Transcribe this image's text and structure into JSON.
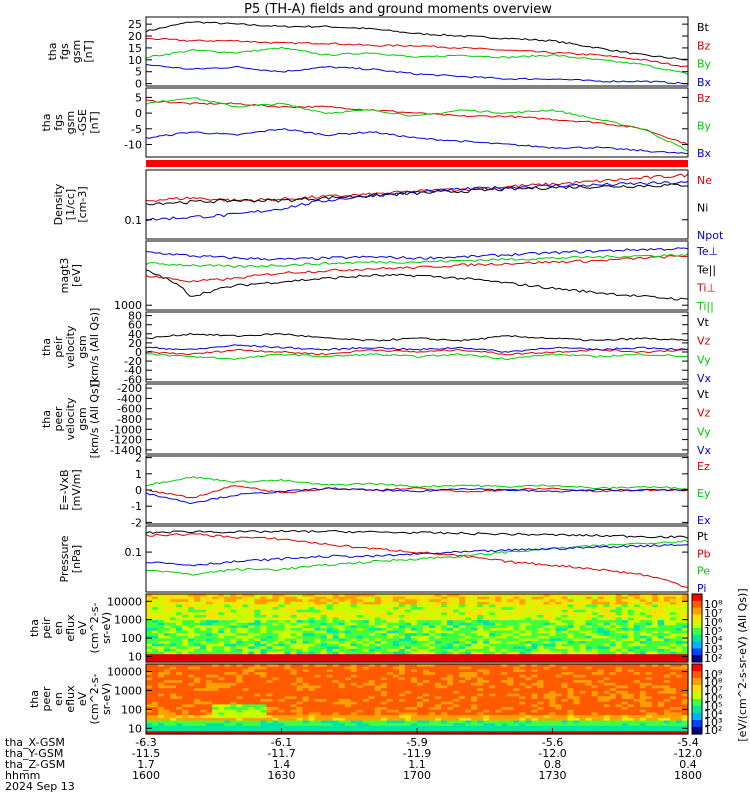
{
  "title": "P5 (TH-A) fields and ground moments overview",
  "chart_data": [
    {
      "type": "line",
      "panel": "fgs_gsm",
      "ylabel": [
        "tha",
        "fgs",
        "gsm",
        "[nT]"
      ],
      "yticks": [
        25,
        20,
        15,
        10,
        5,
        0
      ],
      "ylim": [
        -1,
        28
      ],
      "series": [
        {
          "name": "Bt",
          "color": "#000000",
          "values": [
            22,
            26,
            25,
            24,
            24,
            23,
            21,
            20,
            19,
            18,
            15,
            12,
            10
          ]
        },
        {
          "name": "Bz",
          "color": "#dd0000",
          "values": [
            19,
            18,
            18,
            17,
            17,
            16,
            16,
            15,
            14,
            13,
            12,
            10,
            7
          ]
        },
        {
          "name": "By",
          "color": "#00cc00",
          "values": [
            11,
            14,
            13,
            15,
            12,
            13,
            11,
            12,
            11,
            12,
            10,
            8,
            4
          ]
        },
        {
          "name": "Bx",
          "color": "#0000dd",
          "values": [
            8,
            6,
            7,
            5,
            7,
            6,
            4,
            3,
            2,
            2,
            1,
            1,
            0
          ]
        }
      ]
    },
    {
      "type": "line",
      "panel": "fgs_gsm_zoom",
      "ylabel": [
        "tha",
        "fgs",
        "gsm",
        "-GSE",
        "[nT]"
      ],
      "yticks": [
        5,
        0,
        -5,
        -10
      ],
      "ylim": [
        -14,
        8
      ],
      "series": [
        {
          "name": "Bz",
          "color": "#dd0000",
          "values": [
            4,
            3,
            3,
            2,
            2,
            1,
            0,
            -1,
            -1,
            -2,
            -3,
            -5,
            -10
          ]
        },
        {
          "name": "By",
          "color": "#00cc00",
          "values": [
            3,
            5,
            2,
            3,
            0,
            1,
            -1,
            1,
            0,
            1,
            -2,
            -5,
            -12
          ]
        },
        {
          "name": "Bx",
          "color": "#0000dd",
          "values": [
            -8,
            -6,
            -7,
            -5,
            -7,
            -6,
            -8,
            -9,
            -10,
            -11,
            -11,
            -12,
            -13
          ]
        }
      ]
    },
    {
      "type": "line",
      "panel": "density",
      "ylabel": [
        "Density",
        "[1/cc]",
        "[cm-3]"
      ],
      "yticks": [
        0.1
      ],
      "ylim": [
        0.05,
        0.6
      ],
      "log": true,
      "series": [
        {
          "name": "Ne",
          "color": "#dd0000",
          "values": [
            0.2,
            0.22,
            0.2,
            0.21,
            0.23,
            0.25,
            0.28,
            0.3,
            0.33,
            0.36,
            0.4,
            0.45,
            0.5
          ]
        },
        {
          "name": "Ni",
          "color": "#000000",
          "values": [
            0.18,
            0.19,
            0.2,
            0.2,
            0.22,
            0.24,
            0.26,
            0.28,
            0.3,
            0.32,
            0.33,
            0.34,
            0.35
          ]
        },
        {
          "name": "Npot",
          "color": "#0000dd",
          "values": [
            0.1,
            0.11,
            0.12,
            0.15,
            0.2,
            0.24,
            0.27,
            0.3,
            0.32,
            0.34,
            0.35,
            0.37,
            0.38
          ]
        }
      ]
    },
    {
      "type": "line",
      "panel": "temperature",
      "ylabel": [
        "magt3",
        "[eV]"
      ],
      "yticks": [
        1000
      ],
      "ylim": [
        800,
        20000
      ],
      "log": true,
      "series": [
        {
          "name": "Te⊥",
          "color": "#0000dd",
          "values": [
            12000,
            10000,
            9000,
            8500,
            9000,
            9500,
            9000,
            9500,
            10500,
            11500,
            12500,
            13500,
            14000
          ]
        },
        {
          "name": "Te||",
          "color": "#000000",
          "values": [
            5000,
            1500,
            2500,
            3000,
            3500,
            4000,
            4000,
            3500,
            2800,
            2200,
            1800,
            1500,
            1300
          ]
        },
        {
          "name": "Ti⊥",
          "color": "#dd0000",
          "values": [
            4000,
            3000,
            3500,
            4500,
            5000,
            5500,
            5800,
            6500,
            7000,
            7500,
            8000,
            9000,
            10000
          ]
        },
        {
          "name": "Ti||",
          "color": "#00cc00",
          "values": [
            7000,
            6500,
            6000,
            6500,
            7000,
            7500,
            7500,
            8000,
            8500,
            9000,
            9500,
            10000,
            10500
          ]
        }
      ]
    },
    {
      "type": "line",
      "panel": "peir_velocity",
      "ylabel": [
        "tha",
        "peir",
        "velocity",
        "gsm",
        "[km/s (All Qs)]"
      ],
      "yticks": [
        80,
        60,
        40,
        20,
        0,
        -20,
        -40,
        -60
      ],
      "ylim": [
        -66,
        88
      ],
      "series": [
        {
          "name": "Vt",
          "color": "#000000",
          "values": [
            30,
            40,
            35,
            40,
            30,
            25,
            30,
            25,
            35,
            30,
            25,
            30,
            25
          ]
        },
        {
          "name": "Vz",
          "color": "#dd0000",
          "values": [
            0,
            -5,
            5,
            0,
            -5,
            5,
            0,
            5,
            -5,
            0,
            5,
            0,
            5
          ]
        },
        {
          "name": "Vy",
          "color": "#00cc00",
          "values": [
            -5,
            -10,
            -15,
            -5,
            -10,
            -5,
            -10,
            -5,
            -15,
            -5,
            -10,
            -5,
            -10
          ]
        },
        {
          "name": "Vx",
          "color": "#0000dd",
          "values": [
            10,
            5,
            15,
            10,
            5,
            10,
            5,
            10,
            0,
            10,
            5,
            10,
            5
          ]
        }
      ]
    },
    {
      "type": "line",
      "panel": "peer_velocity",
      "ylabel": [
        "tha",
        "peer",
        "velocity",
        "gsm",
        "[km/s (All Qs)]"
      ],
      "yticks": [
        -200,
        -400,
        -600,
        -800,
        -1000,
        -1200,
        -1400
      ],
      "ylim": [
        -1480,
        -120
      ],
      "series": [
        {
          "name": "Vt",
          "color": "#000000",
          "values": []
        },
        {
          "name": "Vz",
          "color": "#dd0000",
          "values": []
        },
        {
          "name": "Vy",
          "color": "#00cc00",
          "values": []
        },
        {
          "name": "Vx",
          "color": "#0000dd",
          "values": []
        }
      ]
    },
    {
      "type": "line",
      "panel": "efield",
      "ylabel": [
        "E=-VxB",
        "[mV/m]"
      ],
      "yticks": [
        2,
        1,
        0,
        -1,
        -2
      ],
      "ylim": [
        -2.1,
        2.1
      ],
      "series": [
        {
          "name": "Ez",
          "color": "#dd0000",
          "values": [
            0,
            -0.5,
            0.3,
            -0.2,
            0.1,
            0,
            0.1,
            -0.1,
            0,
            0.1,
            -0.1,
            0,
            0
          ]
        },
        {
          "name": "Ey",
          "color": "#00cc00",
          "values": [
            0.3,
            0.8,
            0.5,
            0.6,
            0.3,
            0.4,
            0.2,
            0.3,
            0.2,
            0.3,
            0.1,
            0.2,
            0.1
          ]
        },
        {
          "name": "Ex",
          "color": "#0000dd",
          "values": [
            -0.2,
            -0.8,
            -0.3,
            -0.1,
            0.1,
            0,
            -0.1,
            0.1,
            0,
            -0.1,
            0,
            0,
            0
          ]
        }
      ]
    },
    {
      "type": "line",
      "panel": "pressure",
      "ylabel": [
        "Pressure",
        "[nPa]"
      ],
      "yticks": [
        0.1
      ],
      "ylim": [
        0.012,
        0.4
      ],
      "log": true,
      "series": [
        {
          "name": "Pt",
          "color": "#000000",
          "values": [
            0.28,
            0.3,
            0.29,
            0.3,
            0.3,
            0.29,
            0.28,
            0.27,
            0.26,
            0.25,
            0.24,
            0.23,
            0.22
          ]
        },
        {
          "name": "Pb",
          "color": "#dd0000",
          "values": [
            0.24,
            0.26,
            0.22,
            0.2,
            0.15,
            0.12,
            0.1,
            0.08,
            0.06,
            0.05,
            0.04,
            0.03,
            0.015
          ]
        },
        {
          "name": "Pe",
          "color": "#00cc00",
          "values": [
            0.04,
            0.03,
            0.04,
            0.04,
            0.05,
            0.06,
            0.07,
            0.08,
            0.1,
            0.12,
            0.14,
            0.16,
            0.18
          ]
        },
        {
          "name": "Pi",
          "color": "#0000dd",
          "values": [
            0.06,
            0.05,
            0.06,
            0.07,
            0.08,
            0.08,
            0.09,
            0.1,
            0.11,
            0.12,
            0.13,
            0.14,
            0.15
          ]
        }
      ]
    },
    {
      "type": "heatmap",
      "panel": "peir_spectrogram",
      "ylabel": [
        "tha",
        "peir",
        "en",
        "eflux",
        "eV",
        "(cm^2-s-",
        "sr-eV)"
      ],
      "yticks": [
        10000,
        1000,
        100,
        10
      ],
      "ylim": [
        5,
        25000
      ],
      "log": true
    },
    {
      "type": "heatmap",
      "panel": "peer_spectrogram",
      "ylabel": [
        "tha",
        "peer",
        "en",
        "eflux",
        "eV",
        "(cm^2-s-",
        "sr-eV)"
      ],
      "yticks": [
        10000,
        1000,
        100,
        10
      ],
      "ylim": [
        5,
        25000
      ],
      "log": true
    }
  ],
  "colorbars": {
    "top_ticks": [
      "10⁸",
      "10⁷",
      "10⁶",
      "10⁵",
      "10⁴",
      "10³",
      "10²"
    ],
    "bottom_ticks": [
      "10⁹",
      "10⁸",
      "10⁷",
      "10⁶",
      "10⁵",
      "10⁴",
      "10³",
      "10²"
    ],
    "label": "[eV/(cm^2-s-sr-eV) (All Qs)]"
  },
  "xaxis": {
    "rows": [
      {
        "label": "tha_X-GSM",
        "values": [
          "-6.3",
          "-6.1",
          "-5.9",
          "-5.6",
          "-5.4"
        ]
      },
      {
        "label": "tha_Y-GSM",
        "values": [
          "-11.5",
          "-11.7",
          "-11.9",
          "-12.0",
          "-12.0"
        ]
      },
      {
        "label": "tha_Z-GSM",
        "values": [
          "1.7",
          "1.4",
          "1.1",
          "0.8",
          "0.4"
        ]
      },
      {
        "label": "hhmm",
        "values": [
          "1600",
          "1630",
          "1700",
          "1730",
          "1800"
        ]
      }
    ],
    "date": "2024 Sep 13"
  }
}
